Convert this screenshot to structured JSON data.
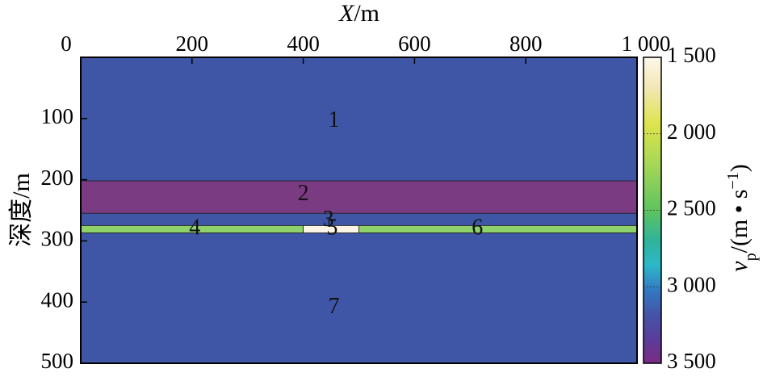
{
  "chart_data": {
    "type": "heatmap",
    "title": "",
    "x_axis": {
      "label_italic": "X",
      "label_unit": "/m",
      "range": [
        0,
        1000
      ],
      "ticks": [
        0,
        200,
        400,
        600,
        800,
        1000
      ],
      "tick_labels": [
        "0",
        "200",
        "400",
        "600",
        "800",
        "1 000"
      ],
      "position": "top"
    },
    "y_axis": {
      "label": "深度/m",
      "range": [
        0,
        500
      ],
      "inverted": true,
      "ticks": [
        100,
        200,
        300,
        400,
        500
      ],
      "tick_labels": [
        "100",
        "200",
        "300",
        "400",
        "500"
      ]
    },
    "colorbar": {
      "label_var": "v",
      "label_sub": "p",
      "label_unit_open": "/(m • s",
      "label_sup": "−1",
      "label_close": ")",
      "range": [
        1500,
        3500
      ],
      "ticks": [
        1500,
        2000,
        2500,
        3000,
        3500
      ],
      "tick_labels": [
        "1 500",
        "2 000",
        "2 500",
        "3 000",
        "3 500"
      ],
      "colormap": "viridis_r"
    },
    "background_velocity": 3000,
    "regions": [
      {
        "id": "1",
        "x": [
          0,
          1000
        ],
        "depth": [
          0,
          202
        ],
        "velocity": 3000,
        "color": "#3f56a6",
        "label_pos": [
          455,
          105
        ]
      },
      {
        "id": "2",
        "x": [
          0,
          1000
        ],
        "depth": [
          202,
          255
        ],
        "velocity": 3400,
        "color": "#7a3b82",
        "label_pos": [
          400,
          225
        ]
      },
      {
        "id": "3",
        "x": [
          0,
          1000
        ],
        "depth": [
          255,
          275
        ],
        "velocity": 3000,
        "color": "#3f56a6",
        "label_pos": [
          445,
          267
        ]
      },
      {
        "id": "4",
        "x": [
          0,
          400
        ],
        "depth": [
          275,
          287
        ],
        "velocity": 2300,
        "color": "#8fd16b",
        "label_pos": [
          205,
          281
        ]
      },
      {
        "id": "5",
        "x": [
          400,
          500
        ],
        "depth": [
          275,
          287
        ],
        "velocity": 1500,
        "color": "#fcf4e4",
        "label_pos": [
          452,
          281
        ]
      },
      {
        "id": "6",
        "x": [
          500,
          1000
        ],
        "depth": [
          275,
          287
        ],
        "velocity": 2300,
        "color": "#8fd16b",
        "label_pos": [
          713,
          281
        ]
      },
      {
        "id": "7",
        "x": [
          0,
          1000
        ],
        "depth": [
          287,
          500
        ],
        "velocity": 3000,
        "color": "#3f56a6",
        "label_pos": [
          455,
          410
        ]
      }
    ]
  }
}
